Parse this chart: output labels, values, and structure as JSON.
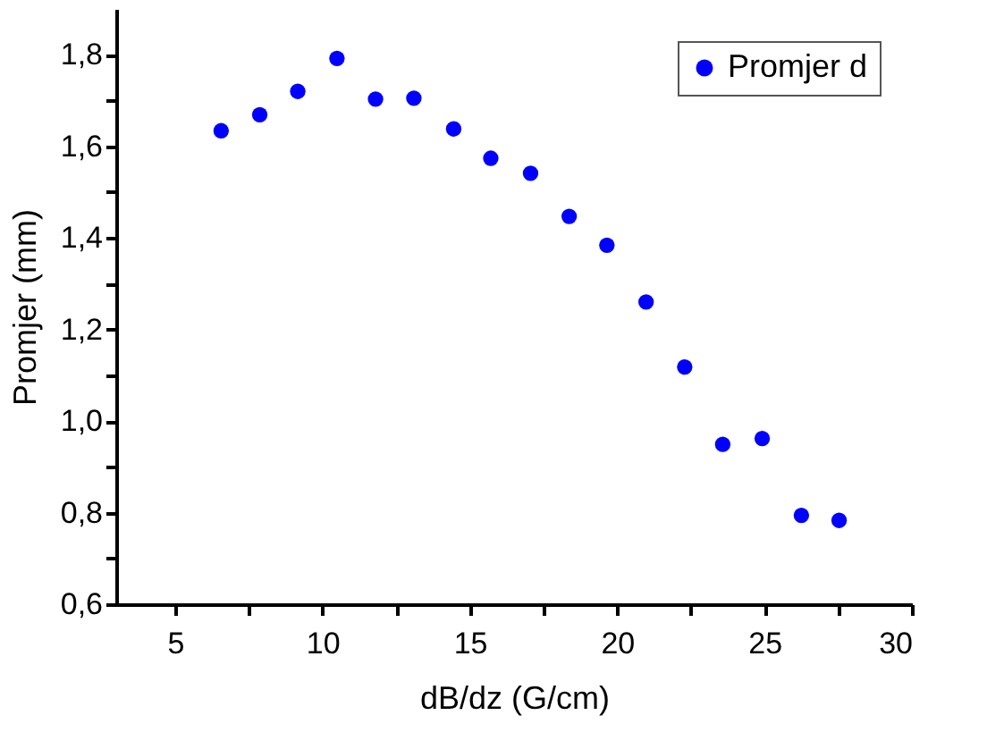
{
  "chart_data": {
    "type": "scatter",
    "xlabel": "dB/dz (G/cm)",
    "ylabel": "Promjer (mm)",
    "x": [
      6.56,
      7.87,
      9.16,
      10.49,
      11.8,
      13.1,
      14.45,
      15.71,
      17.06,
      18.37,
      19.65,
      20.98,
      22.29,
      23.58,
      24.92,
      26.25,
      27.53
    ],
    "series": [
      {
        "name": "Promjer d",
        "color": "#0000ff",
        "values": [
          1.634,
          1.669,
          1.72,
          1.792,
          1.703,
          1.705,
          1.638,
          1.574,
          1.541,
          1.447,
          1.384,
          1.26,
          1.118,
          0.949,
          0.962,
          0.794,
          0.783
        ]
      }
    ],
    "xlim": [
      3,
      30
    ],
    "xticks": [
      5,
      {
        "value": 7.5,
        "label": null
      },
      10,
      {
        "value": 12.5,
        "label": null
      },
      15,
      {
        "value": 17.5,
        "label": null
      },
      20,
      {
        "value": 22.5,
        "label": null
      },
      25,
      {
        "value": 27.5,
        "label": null
      },
      30
    ],
    "ylim": [
      0.6,
      1.9
    ],
    "yticks": [
      {
        "value": 0.6,
        "label": "0,6"
      },
      {
        "value": 0.7,
        "label": null
      },
      {
        "value": 0.8,
        "label": "0,8"
      },
      {
        "value": 0.9,
        "label": null
      },
      {
        "value": 1.0,
        "label": "1,0"
      },
      {
        "value": 1.1,
        "label": null
      },
      {
        "value": 1.2,
        "label": "1,2"
      },
      {
        "value": 1.3,
        "label": null
      },
      {
        "value": 1.4,
        "label": "1,4"
      },
      {
        "value": 1.5,
        "label": null
      },
      {
        "value": 1.6,
        "label": "1,6"
      },
      {
        "value": 1.7,
        "label": null
      },
      {
        "value": 1.8,
        "label": "1,8"
      }
    ],
    "marker": "circle",
    "legend": "top right",
    "grid": false
  }
}
